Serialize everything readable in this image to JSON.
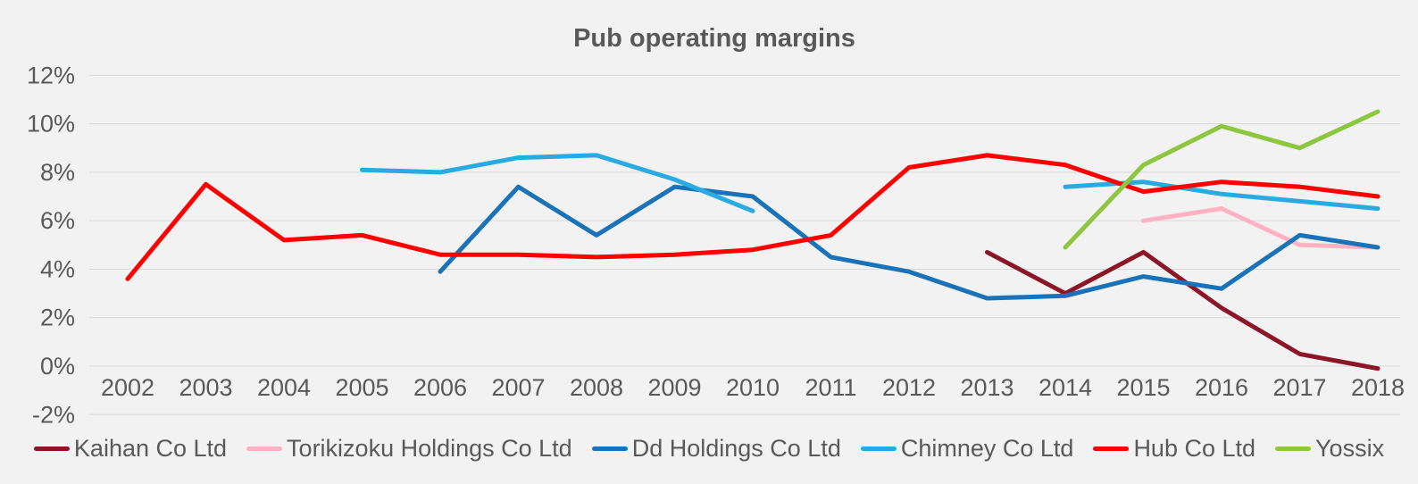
{
  "chart_data": {
    "type": "line",
    "title": "Pub operating margins",
    "xlabel": "",
    "ylabel": "",
    "x": [
      "2002",
      "2003",
      "2004",
      "2005",
      "2006",
      "2007",
      "2008",
      "2009",
      "2010",
      "2011",
      "2012",
      "2013",
      "2014",
      "2015",
      "2016",
      "2017",
      "2018"
    ],
    "y_ticks": [
      {
        "label": "12%",
        "value": 12
      },
      {
        "label": "10%",
        "value": 10
      },
      {
        "label": "8%",
        "value": 8
      },
      {
        "label": "6%",
        "value": 6
      },
      {
        "label": "4%",
        "value": 4
      },
      {
        "label": "2%",
        "value": 2
      },
      {
        "label": "0%",
        "value": 0
      },
      {
        "label": "-2%",
        "value": -2
      }
    ],
    "ylim": [
      -2,
      12
    ],
    "grid": true,
    "legend_position": "bottom",
    "axis_text_color": "#595959",
    "gridline_color": "#d9d9d9",
    "background_color": "#f2f2f2",
    "series": [
      {
        "name": "Kaihan Co Ltd",
        "color": "#8c1628",
        "values": [
          null,
          null,
          null,
          null,
          null,
          null,
          null,
          null,
          null,
          null,
          null,
          4.7,
          3.0,
          4.7,
          2.4,
          0.5,
          -0.1
        ]
      },
      {
        "name": "Torikizoku Holdings Co Ltd",
        "color": "#ffb3c2",
        "values": [
          null,
          null,
          null,
          null,
          null,
          null,
          null,
          null,
          null,
          null,
          null,
          null,
          null,
          6.0,
          6.5,
          5.0,
          4.9
        ]
      },
      {
        "name": "Dd Holdings Co Ltd",
        "color": "#1a73b8",
        "values": [
          null,
          null,
          null,
          null,
          3.9,
          7.4,
          5.4,
          7.4,
          7.0,
          4.5,
          3.9,
          2.8,
          2.9,
          3.7,
          3.2,
          5.4,
          4.9
        ]
      },
      {
        "name": "Chimney Co Ltd",
        "color": "#29abe2",
        "values": [
          null,
          null,
          null,
          8.1,
          8.0,
          8.6,
          8.7,
          7.7,
          6.4,
          null,
          null,
          null,
          7.4,
          7.6,
          7.1,
          6.8,
          6.5
        ]
      },
      {
        "name": "Hub Co Ltd",
        "color": "#fe0000",
        "values": [
          3.6,
          7.5,
          5.2,
          5.4,
          4.6,
          4.6,
          4.5,
          4.6,
          4.8,
          5.4,
          8.2,
          8.7,
          8.3,
          7.2,
          7.6,
          7.4,
          7.0
        ]
      },
      {
        "name": "Yossix",
        "color": "#8dc63f",
        "values": [
          null,
          null,
          null,
          null,
          null,
          null,
          null,
          null,
          null,
          null,
          null,
          null,
          4.9,
          8.3,
          9.9,
          9.0,
          10.5
        ]
      }
    ]
  }
}
